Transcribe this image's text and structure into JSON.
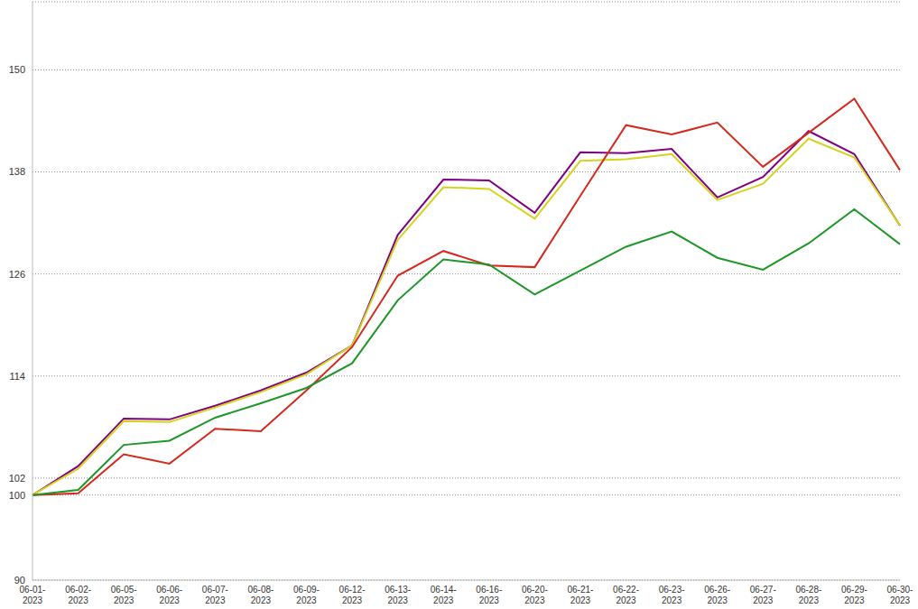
{
  "chart_data": {
    "type": "line",
    "categories": [
      "06-01-2023",
      "06-02-2023",
      "06-05-2023",
      "06-06-2023",
      "06-07-2023",
      "06-08-2023",
      "06-09-2023",
      "06-12-2023",
      "06-13-2023",
      "06-14-2023",
      "06-16-2023",
      "06-20-2023",
      "06-21-2023",
      "06-22-2023",
      "06-23-2023",
      "06-26-2023",
      "06-27-2023",
      "06-28-2023",
      "06-29-2023",
      "06-30-2023"
    ],
    "series": [
      {
        "color": "#800080",
        "values": [
          100,
          103.4,
          109.0,
          108.9,
          110.5,
          112.3,
          114.4,
          117.6,
          130.6,
          137.1,
          137.0,
          133.2,
          140.3,
          140.2,
          140.7,
          135.0,
          137.4,
          142.8,
          140.1,
          131.7
        ]
      },
      {
        "color": "#d4d41e",
        "values": [
          100,
          103.1,
          108.7,
          108.6,
          110.3,
          112.1,
          114.2,
          117.6,
          130.0,
          136.2,
          136.0,
          132.5,
          139.3,
          139.5,
          140.1,
          134.7,
          136.6,
          141.9,
          139.7,
          131.7
        ]
      },
      {
        "color": "#d42a1e",
        "values": [
          100,
          100.2,
          104.8,
          103.7,
          107.8,
          107.5,
          112.3,
          117.4,
          125.8,
          128.7,
          127.0,
          126.8,
          135.2,
          143.5,
          142.4,
          143.8,
          138.6,
          142.6,
          146.6,
          138.2
        ]
      },
      {
        "color": "#1e9628",
        "values": [
          100,
          100.6,
          105.9,
          106.4,
          109.1,
          110.8,
          112.6,
          115.5,
          122.9,
          127.7,
          127.1,
          123.6,
          126.4,
          129.2,
          131.0,
          127.9,
          126.5,
          129.6,
          133.6,
          129.5
        ]
      }
    ],
    "ylim": [
      90,
      158
    ],
    "yticks": [
      90,
      100,
      102,
      114,
      126,
      138,
      150
    ],
    "grid": true
  }
}
